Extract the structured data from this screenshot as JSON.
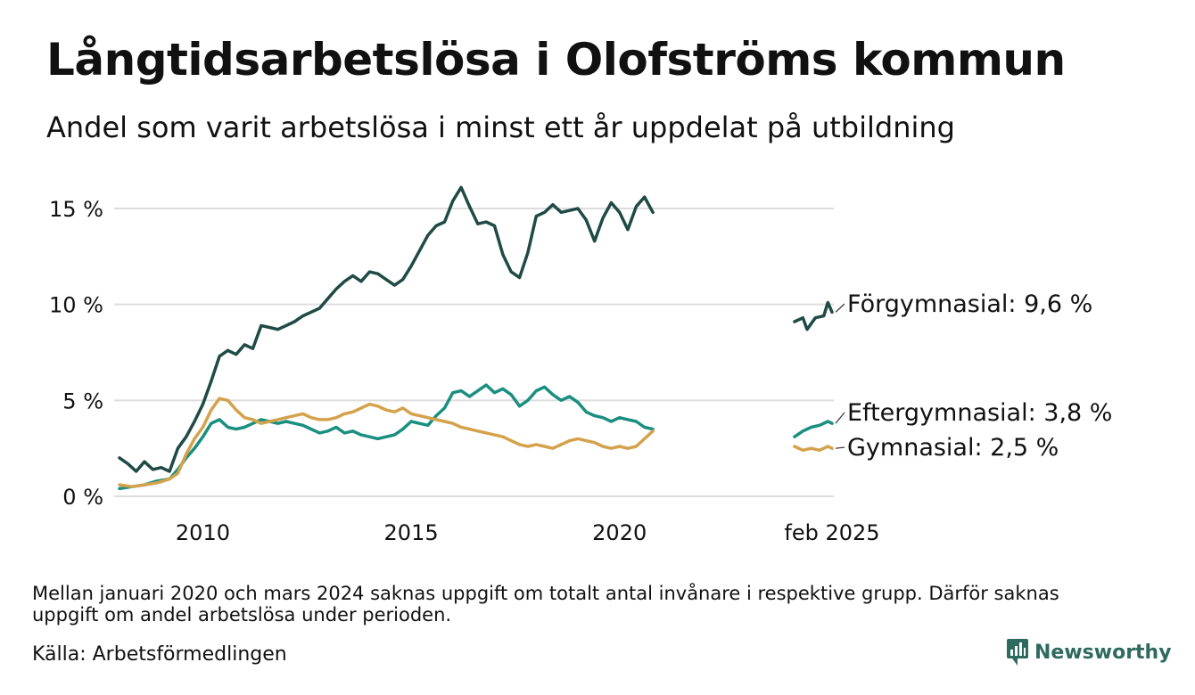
{
  "header": {
    "title": "Långtidsarbetslösa i Olofströms kommun",
    "subtitle": "Andel som varit arbetslösa i minst ett år uppdelat på utbildning"
  },
  "footer": {
    "note": "Mellan januari 2020 och mars 2024 saknas uppgift om totalt antal invånare i respektive grupp. Därför saknas uppgift om andel arbetslösa under perioden.",
    "source": "Källa: Arbetsförmedlingen",
    "brand": "Newsworthy"
  },
  "colors": {
    "forgymnasial": "#1f4a45",
    "eftergymnasial": "#1a8f80",
    "gymnasial": "#d4a24c",
    "grid": "#dddddd",
    "brand": "#2e6b5e"
  },
  "chart_data": {
    "type": "line",
    "title": "Långtidsarbetslösa i Olofströms kommun",
    "subtitle": "Andel som varit arbetslösa i minst ett år uppdelat på utbildning",
    "ylim": [
      0,
      16
    ],
    "yticks": [
      0,
      5,
      10,
      15
    ],
    "ytick_labels": [
      "0 %",
      "5 %",
      "10 %",
      "15 %"
    ],
    "xticks": [
      2010,
      2015,
      2020,
      2025.1
    ],
    "xtick_labels": [
      "2010",
      "2015",
      "2020",
      "feb 2025"
    ],
    "grid": true,
    "legend": "inline-right",
    "series": [
      {
        "name": "Förgymnasial",
        "end_label": "Förgymnasial: 9,6 %",
        "color": "#1f4a45",
        "segments": [
          [
            [
              2008.0,
              2.0
            ],
            [
              2008.2,
              1.7
            ],
            [
              2008.4,
              1.3
            ],
            [
              2008.6,
              1.8
            ],
            [
              2008.8,
              1.4
            ],
            [
              2009.0,
              1.5
            ],
            [
              2009.2,
              1.3
            ],
            [
              2009.4,
              2.5
            ],
            [
              2009.6,
              3.1
            ],
            [
              2009.8,
              3.9
            ],
            [
              2010.0,
              4.8
            ],
            [
              2010.2,
              6.0
            ],
            [
              2010.4,
              7.3
            ],
            [
              2010.6,
              7.6
            ],
            [
              2010.8,
              7.4
            ],
            [
              2011.0,
              7.9
            ],
            [
              2011.2,
              7.7
            ],
            [
              2011.4,
              8.9
            ],
            [
              2011.6,
              8.8
            ],
            [
              2011.8,
              8.7
            ],
            [
              2012.0,
              8.9
            ],
            [
              2012.2,
              9.1
            ],
            [
              2012.4,
              9.4
            ],
            [
              2012.6,
              9.6
            ],
            [
              2012.8,
              9.8
            ],
            [
              2013.0,
              10.3
            ],
            [
              2013.2,
              10.8
            ],
            [
              2013.4,
              11.2
            ],
            [
              2013.6,
              11.5
            ],
            [
              2013.8,
              11.2
            ],
            [
              2014.0,
              11.7
            ],
            [
              2014.2,
              11.6
            ],
            [
              2014.4,
              11.3
            ],
            [
              2014.6,
              11.0
            ],
            [
              2014.8,
              11.3
            ],
            [
              2015.0,
              12.0
            ],
            [
              2015.2,
              12.8
            ],
            [
              2015.4,
              13.6
            ],
            [
              2015.6,
              14.1
            ],
            [
              2015.8,
              14.3
            ],
            [
              2016.0,
              15.4
            ],
            [
              2016.2,
              16.1
            ],
            [
              2016.4,
              15.1
            ],
            [
              2016.6,
              14.2
            ],
            [
              2016.8,
              14.3
            ],
            [
              2017.0,
              14.1
            ],
            [
              2017.2,
              12.6
            ],
            [
              2017.4,
              11.7
            ],
            [
              2017.6,
              11.4
            ],
            [
              2017.8,
              12.7
            ],
            [
              2018.0,
              14.6
            ],
            [
              2018.2,
              14.8
            ],
            [
              2018.4,
              15.2
            ],
            [
              2018.6,
              14.8
            ],
            [
              2018.8,
              14.9
            ],
            [
              2019.0,
              15.0
            ],
            [
              2019.2,
              14.4
            ],
            [
              2019.4,
              13.3
            ],
            [
              2019.6,
              14.5
            ],
            [
              2019.8,
              15.3
            ],
            [
              2020.0,
              14.8
            ],
            [
              2020.2,
              13.9
            ],
            [
              2020.4,
              15.1
            ],
            [
              2020.6,
              15.6
            ],
            [
              2020.8,
              14.8
            ]
          ],
          [
            [
              2024.2,
              9.1
            ],
            [
              2024.4,
              9.3
            ],
            [
              2024.5,
              8.7
            ],
            [
              2024.7,
              9.3
            ],
            [
              2024.9,
              9.4
            ],
            [
              2025.0,
              10.1
            ],
            [
              2025.1,
              9.6
            ]
          ]
        ]
      },
      {
        "name": "Eftergymnasial",
        "end_label": "Eftergymnasial: 3,8 %",
        "color": "#1a8f80",
        "segments": [
          [
            [
              2008.0,
              0.4
            ],
            [
              2008.3,
              0.5
            ],
            [
              2008.6,
              0.6
            ],
            [
              2008.9,
              0.8
            ],
            [
              2009.2,
              0.9
            ],
            [
              2009.4,
              1.4
            ],
            [
              2009.6,
              2.0
            ],
            [
              2009.8,
              2.5
            ],
            [
              2010.0,
              3.1
            ],
            [
              2010.2,
              3.8
            ],
            [
              2010.4,
              4.0
            ],
            [
              2010.6,
              3.6
            ],
            [
              2010.8,
              3.5
            ],
            [
              2011.0,
              3.6
            ],
            [
              2011.2,
              3.8
            ],
            [
              2011.4,
              4.0
            ],
            [
              2011.6,
              3.9
            ],
            [
              2011.8,
              3.8
            ],
            [
              2012.0,
              3.9
            ],
            [
              2012.2,
              3.8
            ],
            [
              2012.4,
              3.7
            ],
            [
              2012.6,
              3.5
            ],
            [
              2012.8,
              3.3
            ],
            [
              2013.0,
              3.4
            ],
            [
              2013.2,
              3.6
            ],
            [
              2013.4,
              3.3
            ],
            [
              2013.6,
              3.4
            ],
            [
              2013.8,
              3.2
            ],
            [
              2014.0,
              3.1
            ],
            [
              2014.2,
              3.0
            ],
            [
              2014.4,
              3.1
            ],
            [
              2014.6,
              3.2
            ],
            [
              2014.8,
              3.5
            ],
            [
              2015.0,
              3.9
            ],
            [
              2015.2,
              3.8
            ],
            [
              2015.4,
              3.7
            ],
            [
              2015.6,
              4.2
            ],
            [
              2015.8,
              4.6
            ],
            [
              2016.0,
              5.4
            ],
            [
              2016.2,
              5.5
            ],
            [
              2016.4,
              5.2
            ],
            [
              2016.6,
              5.5
            ],
            [
              2016.8,
              5.8
            ],
            [
              2017.0,
              5.4
            ],
            [
              2017.2,
              5.6
            ],
            [
              2017.4,
              5.3
            ],
            [
              2017.6,
              4.7
            ],
            [
              2017.8,
              5.0
            ],
            [
              2018.0,
              5.5
            ],
            [
              2018.2,
              5.7
            ],
            [
              2018.4,
              5.3
            ],
            [
              2018.6,
              5.0
            ],
            [
              2018.8,
              5.2
            ],
            [
              2019.0,
              4.9
            ],
            [
              2019.2,
              4.4
            ],
            [
              2019.4,
              4.2
            ],
            [
              2019.6,
              4.1
            ],
            [
              2019.8,
              3.9
            ],
            [
              2020.0,
              4.1
            ],
            [
              2020.2,
              4.0
            ],
            [
              2020.4,
              3.9
            ],
            [
              2020.6,
              3.6
            ],
            [
              2020.8,
              3.5
            ]
          ],
          [
            [
              2024.2,
              3.1
            ],
            [
              2024.4,
              3.4
            ],
            [
              2024.6,
              3.6
            ],
            [
              2024.8,
              3.7
            ],
            [
              2025.0,
              3.9
            ],
            [
              2025.1,
              3.8
            ]
          ]
        ]
      },
      {
        "name": "Gymnasial",
        "end_label": "Gymnasial: 2,5 %",
        "color": "#d4a24c",
        "segments": [
          [
            [
              2008.0,
              0.6
            ],
            [
              2008.3,
              0.5
            ],
            [
              2008.6,
              0.6
            ],
            [
              2008.9,
              0.7
            ],
            [
              2009.2,
              0.9
            ],
            [
              2009.4,
              1.2
            ],
            [
              2009.6,
              2.2
            ],
            [
              2009.8,
              3.0
            ],
            [
              2010.0,
              3.6
            ],
            [
              2010.2,
              4.5
            ],
            [
              2010.4,
              5.1
            ],
            [
              2010.6,
              5.0
            ],
            [
              2010.8,
              4.5
            ],
            [
              2011.0,
              4.1
            ],
            [
              2011.2,
              4.0
            ],
            [
              2011.4,
              3.8
            ],
            [
              2011.6,
              3.9
            ],
            [
              2011.8,
              4.0
            ],
            [
              2012.0,
              4.1
            ],
            [
              2012.2,
              4.2
            ],
            [
              2012.4,
              4.3
            ],
            [
              2012.6,
              4.1
            ],
            [
              2012.8,
              4.0
            ],
            [
              2013.0,
              4.0
            ],
            [
              2013.2,
              4.1
            ],
            [
              2013.4,
              4.3
            ],
            [
              2013.6,
              4.4
            ],
            [
              2013.8,
              4.6
            ],
            [
              2014.0,
              4.8
            ],
            [
              2014.2,
              4.7
            ],
            [
              2014.4,
              4.5
            ],
            [
              2014.6,
              4.4
            ],
            [
              2014.8,
              4.6
            ],
            [
              2015.0,
              4.3
            ],
            [
              2015.2,
              4.2
            ],
            [
              2015.4,
              4.1
            ],
            [
              2015.6,
              4.0
            ],
            [
              2015.8,
              3.9
            ],
            [
              2016.0,
              3.8
            ],
            [
              2016.2,
              3.6
            ],
            [
              2016.4,
              3.5
            ],
            [
              2016.6,
              3.4
            ],
            [
              2016.8,
              3.3
            ],
            [
              2017.0,
              3.2
            ],
            [
              2017.2,
              3.1
            ],
            [
              2017.4,
              2.9
            ],
            [
              2017.6,
              2.7
            ],
            [
              2017.8,
              2.6
            ],
            [
              2018.0,
              2.7
            ],
            [
              2018.2,
              2.6
            ],
            [
              2018.4,
              2.5
            ],
            [
              2018.6,
              2.7
            ],
            [
              2018.8,
              2.9
            ],
            [
              2019.0,
              3.0
            ],
            [
              2019.2,
              2.9
            ],
            [
              2019.4,
              2.8
            ],
            [
              2019.6,
              2.6
            ],
            [
              2019.8,
              2.5
            ],
            [
              2020.0,
              2.6
            ],
            [
              2020.2,
              2.5
            ],
            [
              2020.4,
              2.6
            ],
            [
              2020.6,
              3.0
            ],
            [
              2020.8,
              3.4
            ]
          ],
          [
            [
              2024.2,
              2.6
            ],
            [
              2024.4,
              2.4
            ],
            [
              2024.6,
              2.5
            ],
            [
              2024.8,
              2.4
            ],
            [
              2025.0,
              2.6
            ],
            [
              2025.1,
              2.5
            ]
          ]
        ]
      }
    ]
  }
}
